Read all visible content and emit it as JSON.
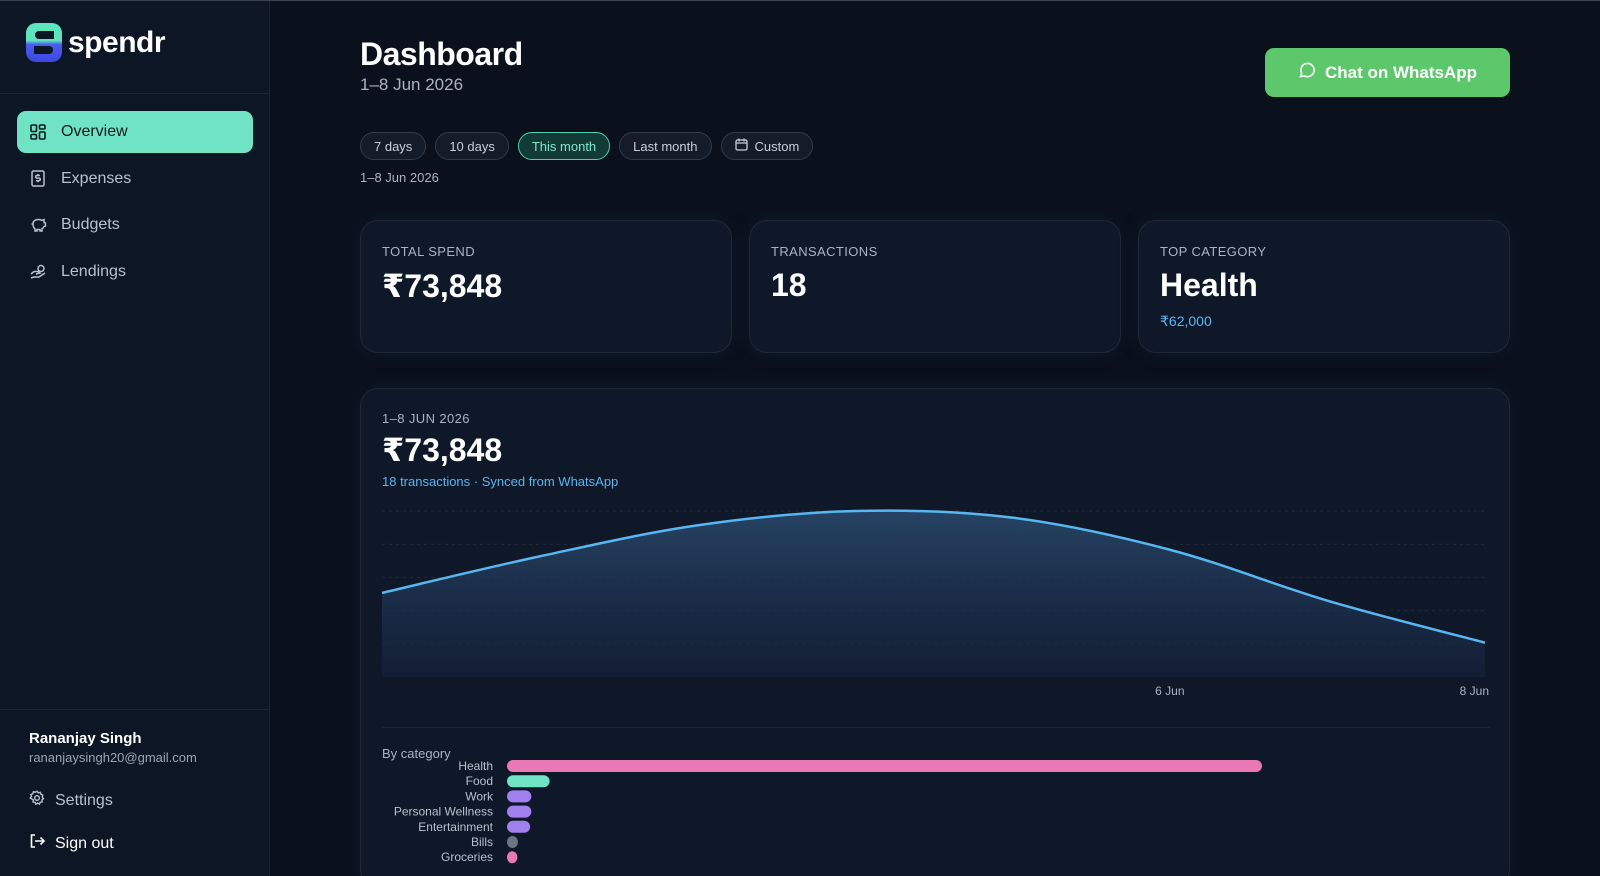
{
  "app": {
    "name": "spendr"
  },
  "sidebar": {
    "items": [
      {
        "label": "Overview",
        "icon": "grid-icon",
        "active": true
      },
      {
        "label": "Expenses",
        "icon": "receipt-icon",
        "active": false
      },
      {
        "label": "Budgets",
        "icon": "piggy-bank-icon",
        "active": false
      },
      {
        "label": "Lendings",
        "icon": "hand-coins-icon",
        "active": false
      }
    ],
    "user": {
      "name": "Rananjay Singh",
      "email": "rananjaysingh20@gmail.com"
    },
    "settings_label": "Settings",
    "signout_label": "Sign out"
  },
  "header": {
    "title": "Dashboard",
    "subtitle": "1–8 Jun 2026",
    "whatsapp_button": "Chat on WhatsApp"
  },
  "filters": {
    "chips": [
      {
        "label": "7 days",
        "active": false
      },
      {
        "label": "10 days",
        "active": false
      },
      {
        "label": "This month",
        "active": true
      },
      {
        "label": "Last month",
        "active": false
      },
      {
        "label": "Custom",
        "active": false,
        "icon": "calendar-icon"
      }
    ],
    "range_label": "1–8 Jun 2026"
  },
  "stats": {
    "total_spend": {
      "label": "TOTAL SPEND",
      "value": "₹73,848"
    },
    "transactions": {
      "label": "TRANSACTIONS",
      "value": "18"
    },
    "top_category": {
      "label": "TOP CATEGORY",
      "value": "Health",
      "amount": "₹62,000"
    }
  },
  "overview": {
    "label": "1–8 JUN 2026",
    "value": "₹73,848",
    "subtitle": "18 transactions · Synced from WhatsApp",
    "category_title": "By category"
  },
  "colors": {
    "accent": "#6fe3c4",
    "line": "#58b6f0",
    "whatsapp": "#5dc76b",
    "health": "#e979b5",
    "food": "#6fe3c4",
    "purple": "#a080ee",
    "bills": "#6b7484",
    "groceries": "#e979b5"
  },
  "chart_data": [
    {
      "type": "area",
      "x_ticks": [
        "6 Jun",
        "8 Jun"
      ],
      "x": [
        1,
        2,
        3,
        4,
        5,
        6,
        7,
        8
      ],
      "values": [
        7600,
        10900,
        13700,
        15000,
        14400,
        11500,
        6900,
        3100
      ],
      "ylim": [
        0,
        15000
      ],
      "grid": true
    },
    {
      "type": "bar",
      "orientation": "horizontal",
      "title": "By category",
      "categories": [
        "Health",
        "Food",
        "Work",
        "Personal Wellness",
        "Entertainment",
        "Bills",
        "Groceries"
      ],
      "values": [
        62000,
        3500,
        2000,
        2000,
        1900,
        900,
        850
      ],
      "colors": [
        "#e979b5",
        "#6fe3c4",
        "#a080ee",
        "#a080ee",
        "#a080ee",
        "#6b7484",
        "#e979b5"
      ]
    }
  ]
}
